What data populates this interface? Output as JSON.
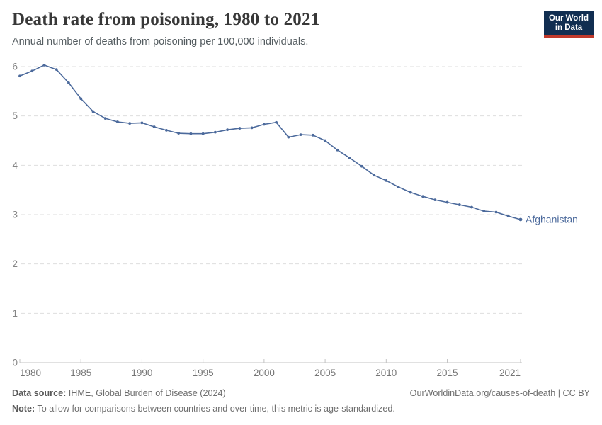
{
  "header": {
    "title": "Death rate from poisoning, 1980 to 2021",
    "subtitle": "Annual number of deaths from poisoning per 100,000 individuals."
  },
  "logo": {
    "line1": "Our World",
    "line2": "in Data",
    "bg_color": "#112e51",
    "accent_color": "#c0392b"
  },
  "footer": {
    "data_source_label": "Data source:",
    "data_source_value": " IHME, Global Burden of Disease (2024)",
    "link": "OurWorldinData.org/causes-of-death | CC BY",
    "note_label": "Note:",
    "note_value": " To allow for comparisons between countries and over time, this metric is age-standardized."
  },
  "chart_data": {
    "type": "line",
    "title": "Death rate from poisoning, 1980 to 2021",
    "xlabel": "",
    "ylabel": "Annual deaths from poisoning per 100,000 individuals",
    "xlim": [
      1980,
      2021
    ],
    "ylim": [
      0,
      6
    ],
    "x_ticks": [
      1980,
      1985,
      1990,
      1995,
      2000,
      2005,
      2010,
      2015,
      2021
    ],
    "y_ticks": [
      0,
      1,
      2,
      3,
      4,
      5,
      6
    ],
    "grid": "horizontal-dashed",
    "legend_position": "end-of-line-label",
    "series": [
      {
        "name": "Afghanistan",
        "color": "#4c6a9c",
        "x": [
          1980,
          1981,
          1982,
          1983,
          1984,
          1985,
          1986,
          1987,
          1988,
          1989,
          1990,
          1991,
          1992,
          1993,
          1994,
          1995,
          1996,
          1997,
          1998,
          1999,
          2000,
          2001,
          2002,
          2003,
          2004,
          2005,
          2006,
          2007,
          2008,
          2009,
          2010,
          2011,
          2012,
          2013,
          2014,
          2015,
          2016,
          2017,
          2018,
          2019,
          2020,
          2021
        ],
        "values": [
          5.81,
          5.91,
          6.03,
          5.94,
          5.67,
          5.35,
          5.09,
          4.95,
          4.88,
          4.85,
          4.86,
          4.78,
          4.71,
          4.65,
          4.64,
          4.64,
          4.67,
          4.72,
          4.75,
          4.76,
          4.83,
          4.87,
          4.57,
          4.62,
          4.61,
          4.5,
          4.31,
          4.15,
          3.98,
          3.8,
          3.69,
          3.56,
          3.45,
          3.37,
          3.3,
          3.25,
          3.2,
          3.15,
          3.07,
          3.05,
          2.97,
          2.9
        ]
      }
    ]
  }
}
